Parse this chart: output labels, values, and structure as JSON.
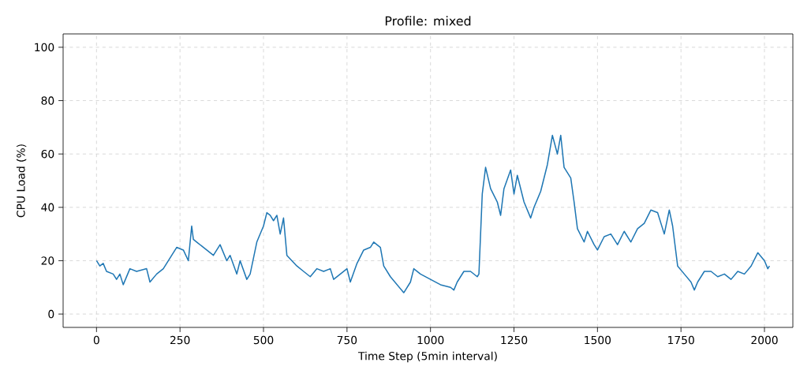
{
  "chart_data": {
    "type": "line",
    "title": "Profile: mixed",
    "xlabel": "Time Step (5min interval)",
    "ylabel": "CPU Load (%)",
    "x": [
      0,
      10,
      20,
      30,
      50,
      60,
      70,
      80,
      100,
      120,
      150,
      160,
      180,
      200,
      220,
      240,
      260,
      275,
      285,
      290,
      300,
      330,
      350,
      370,
      390,
      400,
      420,
      430,
      450,
      460,
      480,
      500,
      510,
      520,
      530,
      540,
      550,
      560,
      570,
      600,
      620,
      640,
      660,
      680,
      700,
      710,
      730,
      750,
      760,
      780,
      800,
      820,
      830,
      850,
      860,
      880,
      900,
      920,
      940,
      950,
      970,
      1000,
      1030,
      1060,
      1070,
      1080,
      1100,
      1120,
      1140,
      1145,
      1155,
      1165,
      1180,
      1200,
      1210,
      1220,
      1240,
      1250,
      1260,
      1280,
      1300,
      1310,
      1330,
      1350,
      1365,
      1380,
      1390,
      1400,
      1420,
      1430,
      1440,
      1460,
      1470,
      1490,
      1500,
      1520,
      1540,
      1560,
      1580,
      1600,
      1620,
      1640,
      1660,
      1680,
      1700,
      1715,
      1725,
      1740,
      1760,
      1780,
      1790,
      1800,
      1820,
      1840,
      1860,
      1880,
      1900,
      1920,
      1940,
      1960,
      1980,
      2000,
      2010,
      2015
    ],
    "series": [
      {
        "color": "#1f77b4",
        "values": [
          20,
          18,
          19,
          16,
          15,
          13,
          15,
          11,
          17,
          16,
          17,
          12,
          15,
          17,
          21,
          25,
          24,
          20,
          33,
          28,
          27,
          24,
          22,
          26,
          20,
          22,
          15,
          20,
          13,
          15,
          27,
          33,
          38,
          37,
          35,
          37,
          30,
          36,
          22,
          18,
          16,
          14,
          17,
          16,
          17,
          13,
          15,
          17,
          12,
          19,
          24,
          25,
          27,
          25,
          18,
          14,
          11,
          8,
          12,
          17,
          15,
          13,
          11,
          10,
          9,
          12,
          16,
          16,
          14,
          15,
          45,
          55,
          47,
          42,
          37,
          47,
          54,
          45,
          52,
          42,
          36,
          40,
          46,
          56,
          67,
          60,
          67,
          55,
          51,
          42,
          32,
          27,
          31,
          26,
          24,
          29,
          30,
          26,
          31,
          27,
          32,
          34,
          39,
          38,
          30,
          39,
          33,
          18,
          15,
          12,
          9,
          12,
          16,
          16,
          14,
          15,
          13,
          16,
          15,
          18,
          23,
          20,
          17,
          18
        ]
      }
    ],
    "xlim": [
      -100,
      2085
    ],
    "ylim": [
      -5,
      105
    ],
    "xticks": [
      0,
      250,
      500,
      750,
      1000,
      1250,
      1500,
      1750,
      2000
    ],
    "yticks": [
      0,
      20,
      40,
      60,
      80,
      100
    ],
    "grid": true,
    "line_style": "solid",
    "marker": "none"
  }
}
